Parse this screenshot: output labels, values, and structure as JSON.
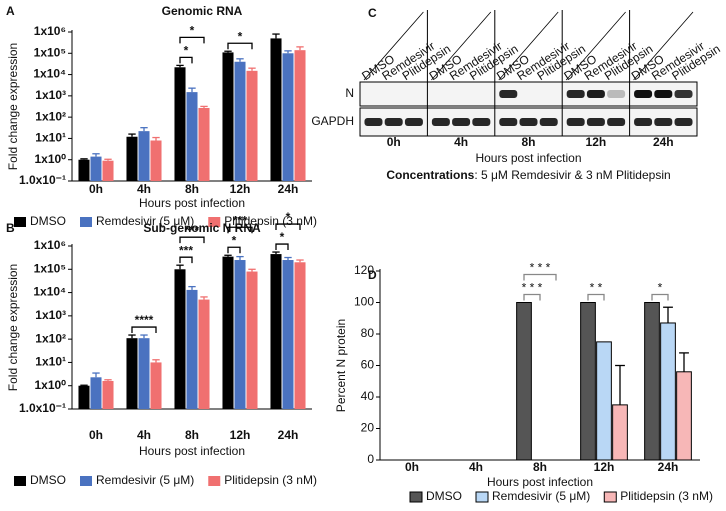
{
  "chart_data": [
    {
      "panel": "A",
      "type": "bar",
      "title": "Genomic RNA",
      "log_scale": true,
      "categories": [
        "0h",
        "4h",
        "8h",
        "12h",
        "24h"
      ],
      "series": [
        {
          "name": "DMSO",
          "color": "#000000",
          "values": [
            1,
            12,
            22000,
            110000,
            500000
          ],
          "errors": [
            0.1,
            4,
            5000,
            15000,
            300000
          ]
        },
        {
          "name": "Remdesivir (5 μM)",
          "color": "#4a72c0",
          "values": [
            1.4,
            22,
            1500,
            40000,
            100000
          ],
          "errors": [
            0.5,
            10,
            800,
            15000,
            30000
          ]
        },
        {
          "name": "Plitidepsin (3 nM)",
          "color": "#f07070",
          "values": [
            0.9,
            8,
            270,
            15000,
            140000
          ],
          "errors": [
            0.15,
            3,
            50,
            5000,
            60000
          ]
        }
      ],
      "ylim": [
        0.1,
        1000000
      ],
      "yticks": [
        {
          "value": 0.1,
          "label": "1.0x10⁻¹"
        },
        {
          "value": 1,
          "label": "1x10⁰"
        },
        {
          "value": 10,
          "label": "1x10¹"
        },
        {
          "value": 100,
          "label": "1x10²"
        },
        {
          "value": 1000,
          "label": "1x10³"
        },
        {
          "value": 10000,
          "label": "1x10⁴"
        },
        {
          "value": 100000,
          "label": "1x10⁵"
        },
        {
          "value": 1000000,
          "label": "1x10⁶"
        }
      ],
      "xlabel": "Hours post infection",
      "ylabel": "Fold change expression",
      "legend": "bottom",
      "annotations": [
        {
          "text": "*",
          "category": "8h",
          "between": [
            "DMSO",
            "Remdesivir (5 μM)"
          ]
        },
        {
          "text": "*",
          "category": "8h",
          "between": [
            "DMSO",
            "Plitidepsin (3 nM)"
          ]
        },
        {
          "text": "*",
          "category": "12h",
          "between": [
            "DMSO",
            "Plitidepsin (3 nM)"
          ]
        }
      ]
    },
    {
      "panel": "B",
      "type": "bar",
      "title": "Sub-genomic N RNA",
      "log_scale": true,
      "categories": [
        "0h",
        "4h",
        "8h",
        "12h",
        "24h"
      ],
      "series": [
        {
          "name": "DMSO",
          "color": "#000000",
          "values": [
            1,
            110,
            100000,
            350000,
            450000
          ],
          "errors": [
            0.05,
            40,
            50000,
            50000,
            100000
          ]
        },
        {
          "name": "Remdesivir (5 μM)",
          "color": "#4a72c0",
          "values": [
            2.3,
            110,
            13000,
            250000,
            250000
          ],
          "errors": [
            1.2,
            40,
            5000,
            100000,
            70000
          ]
        },
        {
          "name": "Plitidepsin (3 nM)",
          "color": "#f07070",
          "values": [
            1.6,
            10,
            5000,
            80000,
            200000
          ],
          "errors": [
            0.2,
            3,
            1500,
            20000,
            50000
          ]
        }
      ],
      "ylim": [
        0.1,
        1000000
      ],
      "yticks": [
        {
          "value": 0.1,
          "label": "1.0x10⁻¹"
        },
        {
          "value": 1,
          "label": "1x10⁰"
        },
        {
          "value": 10,
          "label": "1x10¹"
        },
        {
          "value": 100,
          "label": "1x10²"
        },
        {
          "value": 1000,
          "label": "1x10³"
        },
        {
          "value": 10000,
          "label": "1x10⁴"
        },
        {
          "value": 100000,
          "label": "1x10⁵"
        },
        {
          "value": 1000000,
          "label": "1x10⁶"
        }
      ],
      "xlabel": "Hours post infection",
      "ylabel": "Fold change expression",
      "legend": "bottom",
      "annotations": [
        {
          "text": "****",
          "category": "4h",
          "between": [
            "DMSO",
            "Plitidepsin (3 nM)"
          ]
        },
        {
          "text": "***",
          "category": "8h",
          "between": [
            "DMSO",
            "Remdesivir (5 μM)"
          ]
        },
        {
          "text": "***",
          "category": "8h",
          "between": [
            "DMSO",
            "Plitidepsin (3 nM)"
          ]
        },
        {
          "text": "*",
          "category": "12h",
          "between": [
            "DMSO",
            "Remdesivir (5 μM)"
          ]
        },
        {
          "text": "***",
          "category": "12h",
          "between": [
            "DMSO",
            "Plitidepsin (3 nM)"
          ]
        },
        {
          "text": "*",
          "category": "24h",
          "between": [
            "DMSO",
            "Remdesivir (5 μM)"
          ]
        },
        {
          "text": "*",
          "category": "24h",
          "between": [
            "DMSO",
            "Plitidepsin (3 nM)"
          ]
        }
      ]
    },
    {
      "panel": "D",
      "type": "bar",
      "log_scale": false,
      "categories": [
        "0h",
        "4h",
        "8h",
        "12h",
        "24h"
      ],
      "series": [
        {
          "name": "DMSO",
          "color": "#555555",
          "values": [
            null,
            null,
            100,
            100,
            100
          ],
          "errors": [
            null,
            null,
            null,
            null,
            null
          ]
        },
        {
          "name": "Remdesivir (5 μM)",
          "color": "#b9d7f5",
          "values": [
            null,
            null,
            0,
            75,
            87
          ],
          "errors": [
            null,
            null,
            null,
            null,
            10
          ]
        },
        {
          "name": "Plitidepsin (3 nM)",
          "color": "#f7b7b7",
          "values": [
            null,
            null,
            0,
            35,
            56
          ],
          "errors": [
            null,
            null,
            null,
            25,
            12
          ]
        }
      ],
      "ylim": [
        0,
        120
      ],
      "yticks": [
        0,
        20,
        40,
        60,
        80,
        100,
        120
      ],
      "xlabel": "Hours post infection",
      "ylabel": "Percent N protein",
      "legend": "bottom",
      "annotations": [
        {
          "text": "* * *",
          "category": "8h",
          "between": [
            "DMSO",
            "Remdesivir (5 μM)"
          ]
        },
        {
          "text": "* * *",
          "category": "8h",
          "between": [
            "DMSO",
            "Plitidepsin (3 nM)"
          ]
        },
        {
          "text": "* *",
          "category": "12h",
          "between": [
            "DMSO",
            "Remdesivir (5 μM)"
          ]
        },
        {
          "text": "*",
          "category": "24h",
          "between": [
            "DMSO",
            "Remdesivir (5 μM)"
          ]
        }
      ]
    }
  ],
  "blot": {
    "panel": "C",
    "lanes": [
      "DMSO",
      "Remdesivir",
      "Plitidepsin",
      "DMSO",
      "Remdesivir",
      "Plitidepsin",
      "DMSO",
      "Remdesivir",
      "Plitidepsin",
      "DMSO",
      "Remdesivir",
      "Plitidepsin",
      "DMSO",
      "Remdesivir",
      "Plitidepsin"
    ],
    "rows": [
      "N",
      "GAPDH"
    ],
    "groups": [
      "0h",
      "4h",
      "8h",
      "12h",
      "24h"
    ],
    "xlabel": "Hours post infection",
    "caption": {
      "bold": "Concentrations",
      "text": ": 5 μM Remdesivir & 3 nM Plitidepsin"
    }
  }
}
